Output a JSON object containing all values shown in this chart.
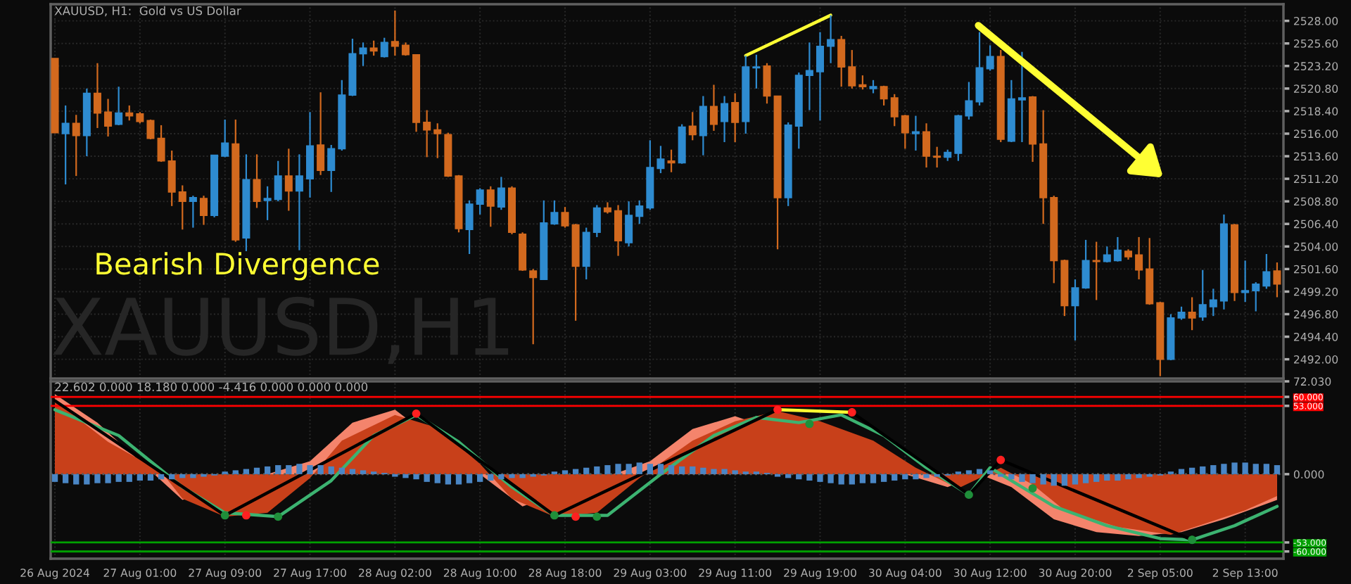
{
  "chart_data": [
    {
      "type": "candlestick",
      "title": "XAUUSD, H1:  Gold vs US Dollar",
      "categories": [
        null,
        null,
        null,
        null,
        null,
        null,
        null,
        null,
        null,
        null,
        null,
        null,
        null,
        null,
        null,
        null,
        null,
        null,
        null,
        null,
        null,
        null,
        null,
        null,
        null,
        null,
        null,
        null,
        null,
        null,
        null,
        null,
        null,
        null,
        null,
        null,
        null,
        null,
        null,
        null,
        null,
        null,
        null,
        null,
        null,
        null,
        null,
        null,
        null,
        null,
        null,
        null,
        null,
        null,
        null,
        null,
        null,
        null,
        null,
        null,
        null,
        null,
        null,
        null,
        null,
        null,
        null,
        null,
        null,
        null,
        null,
        null,
        null,
        null,
        null,
        null,
        null,
        null,
        null,
        null,
        null,
        null,
        null,
        null,
        null,
        null,
        null,
        null,
        null,
        null,
        null,
        null,
        null,
        null,
        null,
        null,
        null,
        null,
        null,
        null,
        null,
        null,
        null,
        null,
        null,
        null,
        null,
        null,
        null,
        null,
        null,
        null,
        null,
        null,
        null,
        null
      ],
      "ohlc": [
        [
          2524.0,
          2524.0,
          2516.1,
          2516.1
        ],
        [
          2516.0,
          2519.0,
          2510.6,
          2517.1
        ],
        [
          2517.1,
          2518.0,
          2511.5,
          2515.8
        ],
        [
          2515.8,
          2520.8,
          2513.6,
          2520.3
        ],
        [
          2520.3,
          2523.5,
          2516.6,
          2518.2
        ],
        [
          2518.3,
          2519.7,
          2515.7,
          2516.8
        ],
        [
          2517.0,
          2521.0,
          2516.9,
          2518.2
        ],
        [
          2518.2,
          2519.0,
          2517.4,
          2517.9
        ],
        [
          2518.1,
          2518.3,
          2517.1,
          2517.3
        ],
        [
          2517.4,
          2517.5,
          2515.4,
          2515.5
        ],
        [
          2515.5,
          2516.9,
          2513.0,
          2513.1
        ],
        [
          2513.1,
          2514.2,
          2508.3,
          2509.8
        ],
        [
          2509.8,
          2510.5,
          2505.8,
          2508.8
        ],
        [
          2508.8,
          2509.4,
          2506.0,
          2509.2
        ],
        [
          2509.1,
          2509.4,
          2506.3,
          2507.3
        ],
        [
          2507.3,
          2513.7,
          2507.1,
          2513.7
        ],
        [
          2513.6,
          2517.5,
          2513.5,
          2515.0
        ],
        [
          2514.9,
          2517.5,
          2504.5,
          2504.7
        ],
        [
          2504.9,
          2513.8,
          2503.5,
          2511.1
        ],
        [
          2511.1,
          2513.8,
          2508.1,
          2508.8
        ],
        [
          2508.9,
          2510.4,
          2506.8,
          2509.1
        ],
        [
          2509.0,
          2513.1,
          2508.8,
          2511.5
        ],
        [
          2511.5,
          2514.4,
          2507.8,
          2509.9
        ],
        [
          2509.9,
          2513.8,
          2503.6,
          2511.5
        ],
        [
          2511.2,
          2518.3,
          2509.2,
          2514.7
        ],
        [
          2514.8,
          2520.4,
          2511.6,
          2512.1
        ],
        [
          2512.1,
          2514.8,
          2509.8,
          2514.4
        ],
        [
          2514.4,
          2521.7,
          2514.2,
          2520.1
        ],
        [
          2520.1,
          2526.1,
          2520.0,
          2524.5
        ],
        [
          2524.5,
          2525.7,
          2523.2,
          2525.1
        ],
        [
          2525.1,
          2525.9,
          2524.3,
          2524.8
        ],
        [
          2524.2,
          2526.2,
          2524.1,
          2525.7
        ],
        [
          2525.8,
          2529.1,
          2524.3,
          2525.3
        ],
        [
          2525.4,
          2525.7,
          2524.3,
          2524.4
        ],
        [
          2524.4,
          2524.4,
          2516.2,
          2517.2
        ],
        [
          2517.2,
          2518.5,
          2513.5,
          2516.4
        ],
        [
          2516.4,
          2517.1,
          2513.4,
          2516.0
        ],
        [
          2515.9,
          2516.1,
          2511.4,
          2511.5
        ],
        [
          2511.5,
          2511.6,
          2505.5,
          2505.9
        ],
        [
          2505.8,
          2508.9,
          2503.2,
          2508.5
        ],
        [
          2508.5,
          2510.2,
          2507.4,
          2510.0
        ],
        [
          2510.0,
          2510.4,
          2506.1,
          2508.3
        ],
        [
          2508.2,
          2511.4,
          2507.9,
          2510.2
        ],
        [
          2510.2,
          2510.4,
          2505.3,
          2505.5
        ],
        [
          2505.3,
          2505.5,
          2501.4,
          2501.5
        ],
        [
          2501.4,
          2501.6,
          2493.6,
          2500.7
        ],
        [
          2500.5,
          2508.9,
          2500.5,
          2506.5
        ],
        [
          2506.4,
          2508.9,
          2506.3,
          2507.6
        ],
        [
          2507.6,
          2508.2,
          2506.0,
          2506.2
        ],
        [
          2506.3,
          2506.4,
          2496.1,
          2501.9
        ],
        [
          2501.9,
          2506.0,
          2500.5,
          2505.5
        ],
        [
          2505.5,
          2508.4,
          2505.0,
          2508.1
        ],
        [
          2508.1,
          2508.7,
          2507.5,
          2507.7
        ],
        [
          2507.8,
          2508.4,
          2503.0,
          2504.6
        ],
        [
          2504.4,
          2508.8,
          2504.0,
          2507.3
        ],
        [
          2507.2,
          2508.9,
          2506.4,
          2508.3
        ],
        [
          2508.1,
          2515.3,
          2507.9,
          2512.4
        ],
        [
          2512.3,
          2514.7,
          2511.8,
          2513.3
        ],
        [
          2513.1,
          2514.3,
          2511.9,
          2512.9
        ],
        [
          2512.9,
          2517.0,
          2512.8,
          2516.7
        ],
        [
          2516.8,
          2518.3,
          2515.3,
          2515.9
        ],
        [
          2515.8,
          2520.0,
          2513.7,
          2518.9
        ],
        [
          2518.9,
          2521.2,
          2516.3,
          2517.0
        ],
        [
          2517.3,
          2520.0,
          2515.1,
          2519.2
        ],
        [
          2519.3,
          2520.3,
          2515.1,
          2517.2
        ],
        [
          2517.3,
          2524.3,
          2516.0,
          2523.1
        ],
        [
          2523.0,
          2524.4,
          2520.8,
          2523.1
        ],
        [
          2523.2,
          2523.5,
          2519.2,
          2520.0
        ],
        [
          2520.0,
          2520.0,
          2503.7,
          2509.2
        ],
        [
          2509.2,
          2517.2,
          2508.3,
          2516.9
        ],
        [
          2516.8,
          2522.5,
          2514.4,
          2522.2
        ],
        [
          2522.2,
          2525.7,
          2518.5,
          2522.7
        ],
        [
          2522.6,
          2526.8,
          2517.4,
          2525.3
        ],
        [
          2525.3,
          2528.6,
          2523.5,
          2526.0
        ],
        [
          2526.0,
          2526.4,
          2521.0,
          2523.1
        ],
        [
          2523.1,
          2524.9,
          2520.8,
          2521.1
        ],
        [
          2521.2,
          2522.2,
          2520.7,
          2521.0
        ],
        [
          2520.8,
          2521.7,
          2520.3,
          2521.0
        ],
        [
          2521.0,
          2521.1,
          2519.0,
          2519.7
        ],
        [
          2519.8,
          2520.2,
          2516.8,
          2517.8
        ],
        [
          2517.9,
          2518.0,
          2514.4,
          2516.1
        ],
        [
          2516.0,
          2517.9,
          2514.2,
          2516.2
        ],
        [
          2516.2,
          2517.1,
          2512.4,
          2513.6
        ],
        [
          2513.6,
          2514.6,
          2512.4,
          2513.5
        ],
        [
          2513.5,
          2514.3,
          2513.1,
          2514.0
        ],
        [
          2513.9,
          2518.0,
          2513.1,
          2517.9
        ],
        [
          2517.9,
          2521.5,
          2517.5,
          2519.5
        ],
        [
          2519.4,
          2526.8,
          2519.0,
          2523.0
        ],
        [
          2522.9,
          2525.4,
          2522.7,
          2524.2
        ],
        [
          2524.2,
          2524.9,
          2515.1,
          2515.4
        ],
        [
          2515.2,
          2521.7,
          2515.1,
          2519.7
        ],
        [
          2519.6,
          2524.7,
          2515.1,
          2519.8
        ],
        [
          2519.9,
          2520.0,
          2513.0,
          2514.9
        ],
        [
          2514.9,
          2518.5,
          2506.4,
          2509.2
        ],
        [
          2509.2,
          2509.4,
          2500.1,
          2502.5
        ],
        [
          2502.5,
          2502.6,
          2496.6,
          2497.7
        ],
        [
          2497.7,
          2500.5,
          2494.0,
          2499.6
        ],
        [
          2499.6,
          2504.7,
          2499.5,
          2502.5
        ],
        [
          2502.5,
          2504.5,
          2498.3,
          2502.4
        ],
        [
          2502.4,
          2504.0,
          2502.3,
          2503.1
        ],
        [
          2502.5,
          2505.0,
          2502.4,
          2503.6
        ],
        [
          2503.5,
          2503.7,
          2502.6,
          2502.9
        ],
        [
          2503.1,
          2505.0,
          2500.5,
          2501.5
        ],
        [
          2501.6,
          2504.9,
          2497.8,
          2497.9
        ],
        [
          2498.0,
          2498.1,
          2490.2,
          2492.0
        ],
        [
          2492.0,
          2496.8,
          2491.9,
          2496.4
        ],
        [
          2496.4,
          2497.6,
          2496.2,
          2497.0
        ],
        [
          2497.0,
          2498.6,
          2495.1,
          2496.4
        ],
        [
          2496.5,
          2501.5,
          2496.1,
          2497.8
        ],
        [
          2497.6,
          2499.5,
          2496.6,
          2498.3
        ],
        [
          2498.2,
          2507.4,
          2497.3,
          2506.4
        ],
        [
          2506.3,
          2506.4,
          2498.2,
          2499.1
        ],
        [
          2499.1,
          2502.5,
          2498.1,
          2499.3
        ],
        [
          2499.3,
          2500.2,
          2497.1,
          2500.0
        ],
        [
          2499.8,
          2503.2,
          2499.5,
          2501.3
        ],
        [
          2501.4,
          2502.3,
          2498.6,
          2500.0
        ]
      ],
      "colors": [
        "#d2691e",
        "#2e8bd0",
        "#d2691e",
        "#2e8bd0",
        "#d2691e",
        "#d2691e",
        "#2e8bd0",
        "#d2691e",
        "#d2691e",
        "#d2691e",
        "#d2691e",
        "#d2691e",
        "#d2691e",
        "#2e8bd0",
        "#d2691e",
        "#2e8bd0",
        "#2e8bd0",
        "#d2691e",
        "#2e8bd0",
        "#d2691e",
        "#2e8bd0",
        "#2e8bd0",
        "#d2691e",
        "#2e8bd0",
        "#2e8bd0",
        "#d2691e",
        "#2e8bd0",
        "#2e8bd0",
        "#2e8bd0",
        "#2e8bd0",
        "#d2691e",
        "#2e8bd0",
        "#d2691e",
        "#d2691e",
        "#d2691e",
        "#d2691e",
        "#d2691e",
        "#d2691e",
        "#d2691e",
        "#2e8bd0",
        "#2e8bd0",
        "#d2691e",
        "#2e8bd0",
        "#d2691e",
        "#d2691e",
        "#d2691e",
        "#2e8bd0",
        "#2e8bd0",
        "#d2691e",
        "#d2691e",
        "#2e8bd0",
        "#2e8bd0",
        "#d2691e",
        "#d2691e",
        "#2e8bd0",
        "#2e8bd0",
        "#2e8bd0",
        "#2e8bd0",
        "#d2691e",
        "#2e8bd0",
        "#d2691e",
        "#2e8bd0",
        "#d2691e",
        "#2e8bd0",
        "#d2691e",
        "#2e8bd0",
        "#2e8bd0",
        "#d2691e",
        "#d2691e",
        "#2e8bd0",
        "#2e8bd0",
        "#2e8bd0",
        "#2e8bd0",
        "#2e8bd0",
        "#d2691e",
        "#d2691e",
        "#d2691e",
        "#2e8bd0",
        "#d2691e",
        "#d2691e",
        "#d2691e",
        "#2e8bd0",
        "#d2691e",
        "#d2691e",
        "#2e8bd0",
        "#2e8bd0",
        "#2e8bd0",
        "#2e8bd0",
        "#2e8bd0",
        "#d2691e",
        "#2e8bd0",
        "#2e8bd0",
        "#d2691e",
        "#d2691e",
        "#d2691e",
        "#d2691e",
        "#2e8bd0",
        "#2e8bd0",
        "#d2691e",
        "#2e8bd0",
        "#2e8bd0",
        "#d2691e",
        "#d2691e",
        "#d2691e",
        "#d2691e",
        "#2e8bd0",
        "#2e8bd0",
        "#d2691e",
        "#2e8bd0",
        "#2e8bd0",
        "#2e8bd0",
        "#d2691e",
        "#2e8bd0",
        "#2e8bd0",
        "#2e8bd0",
        "#d2691e"
      ],
      "series": [
        {
          "type": "line",
          "color": "#ffff33",
          "values": [
            null,
            null,
            null,
            null,
            null,
            null,
            null,
            null,
            null,
            null,
            null,
            null,
            null,
            null,
            null,
            null,
            null,
            null,
            null,
            null,
            null,
            null,
            null,
            null,
            null,
            null,
            null,
            null,
            null,
            null,
            null,
            null,
            null,
            null,
            null,
            null,
            null,
            null,
            null,
            null,
            null,
            null,
            null,
            null,
            null,
            null,
            null,
            null,
            null,
            null,
            null,
            null,
            null,
            null,
            null,
            null,
            null,
            null,
            null,
            null,
            null,
            null,
            null,
            null,
            null,
            2524.3,
            null,
            null,
            null,
            null,
            null,
            null,
            null,
            2528.6,
            null,
            null,
            null,
            null,
            null,
            null,
            null,
            null,
            null,
            null,
            null,
            null,
            null,
            null,
            null,
            null,
            null,
            null,
            null,
            null,
            null,
            null,
            null,
            null,
            null,
            null,
            null,
            null,
            null,
            null,
            null,
            null,
            null,
            null,
            null,
            null,
            null,
            null,
            null,
            null,
            null,
            null
          ]
        }
      ],
      "annotations": [
        "Bearish Divergence",
        "XAUUSD,H1"
      ],
      "ylim": [
        2489.95,
        2529.77
      ],
      "yticks": [
        {
          "value": 2492.0,
          "label": "2492.00"
        },
        {
          "value": 2494.4,
          "label": "2494.40"
        },
        {
          "value": 2496.8,
          "label": "2496.80"
        },
        {
          "value": 2499.2,
          "label": "2499.20"
        },
        {
          "value": 2501.6,
          "label": "2501.60"
        },
        {
          "value": 2504.0,
          "label": "2504.00"
        },
        {
          "value": 2506.4,
          "label": "2506.40"
        },
        {
          "value": 2508.8,
          "label": "2508.80"
        },
        {
          "value": 2511.2,
          "label": "2511.20"
        },
        {
          "value": 2513.6,
          "label": "2513.60"
        },
        {
          "value": 2516.0,
          "label": "2516.00"
        },
        {
          "value": 2518.4,
          "label": "2518.40"
        },
        {
          "value": 2520.8,
          "label": "2520.80"
        },
        {
          "value": 2523.2,
          "label": "2523.20"
        },
        {
          "value": 2525.6,
          "label": "2525.60"
        },
        {
          "value": 2528.0,
          "label": "2528.00"
        }
      ],
      "tick_labels": "y",
      "grid": true
    },
    {
      "type": "area",
      "title": "22.602 0.000 18.180 0.000 -4.416 0.000 0.000 0.000",
      "categories": [
        "26 Aug 2024",
        null,
        null,
        null,
        null,
        null,
        null,
        null,
        "27 Aug 01:00",
        null,
        null,
        null,
        null,
        null,
        null,
        null,
        "27 Aug 09:00",
        null,
        null,
        null,
        null,
        null,
        null,
        null,
        "27 Aug 17:00",
        null,
        null,
        null,
        null,
        null,
        null,
        null,
        "28 Aug 02:00",
        null,
        null,
        null,
        null,
        null,
        null,
        null,
        "28 Aug 10:00",
        null,
        null,
        null,
        null,
        null,
        null,
        null,
        "28 Aug 18:00",
        null,
        null,
        null,
        null,
        null,
        null,
        null,
        "29 Aug 03:00",
        null,
        null,
        null,
        null,
        null,
        null,
        null,
        "29 Aug 11:00",
        null,
        null,
        null,
        null,
        null,
        null,
        null,
        "29 Aug 19:00",
        null,
        null,
        null,
        null,
        null,
        null,
        null,
        "30 Aug 04:00",
        null,
        null,
        null,
        null,
        null,
        null,
        null,
        "30 Aug 12:00",
        null,
        null,
        null,
        null,
        null,
        null,
        null,
        "30 Aug 20:00",
        null,
        null,
        null,
        null,
        null,
        null,
        null,
        "2 Sep 05:00",
        null,
        null,
        null,
        null,
        null,
        null,
        null,
        "2 Sep 13:00",
        null,
        null,
        null
      ],
      "series": [
        {
          "type": "area",
          "color": "#f4846c",
          "values": [
            62,
            null,
            null,
            null,
            40,
            null,
            null,
            null,
            10,
            null,
            null,
            null,
            -20,
            null,
            null,
            null,
            null,
            null,
            null,
            null,
            null,
            null,
            null,
            null,
            10,
            null,
            null,
            null,
            40,
            null,
            null,
            null,
            50,
            null,
            null,
            null,
            null,
            null,
            null,
            null,
            0,
            null,
            null,
            null,
            -25,
            null,
            null,
            null,
            null,
            null,
            null,
            null,
            null,
            null,
            null,
            null,
            10,
            null,
            null,
            null,
            35,
            null,
            null,
            null,
            45,
            null,
            null,
            null,
            null,
            null,
            null,
            null,
            null,
            null,
            null,
            null,
            null,
            null,
            null,
            null,
            0,
            null,
            null,
            null,
            -10,
            null,
            null,
            0,
            null,
            null,
            -10,
            null,
            null,
            null,
            -35,
            null,
            null,
            null,
            -45,
            null,
            null,
            null,
            -48,
            null,
            null,
            null,
            -45,
            null,
            null,
            null,
            -35,
            null,
            null,
            null,
            null,
            -20
          ]
        },
        {
          "type": "area",
          "color": "#c8401a",
          "values": [
            57,
            null,
            null,
            null,
            null,
            25,
            null,
            null,
            null,
            null,
            2,
            null,
            -19,
            null,
            null,
            null,
            -33,
            null,
            null,
            null,
            -30,
            null,
            null,
            null,
            -3,
            null,
            null,
            26,
            null,
            null,
            null,
            null,
            46,
            null,
            null,
            null,
            36,
            null,
            null,
            null,
            8,
            null,
            null,
            -19,
            null,
            null,
            null,
            -33,
            null,
            null,
            null,
            -30,
            null,
            null,
            null,
            -3,
            null,
            null,
            null,
            null,
            26,
            null,
            null,
            null,
            41,
            null,
            null,
            null,
            49,
            null,
            null,
            null,
            41,
            null,
            null,
            null,
            null,
            26,
            null,
            null,
            null,
            5,
            null,
            null,
            null,
            -11,
            null,
            -3,
            null,
            5,
            null,
            null,
            -8,
            null,
            null,
            -28,
            null,
            null,
            null,
            null,
            -41,
            null,
            null,
            null,
            null,
            -47,
            null,
            null,
            -39,
            null,
            null,
            null,
            -28,
            null,
            null,
            -17
          ]
        },
        {
          "type": "line",
          "color": "#3cb371",
          "values": [
            50,
            null,
            null,
            null,
            null,
            null,
            30,
            null,
            null,
            null,
            null,
            null,
            -10,
            null,
            null,
            null,
            -30,
            null,
            null,
            null,
            null,
            -33,
            null,
            null,
            null,
            null,
            -5,
            null,
            null,
            null,
            30,
            null,
            null,
            null,
            46,
            null,
            null,
            null,
            25,
            null,
            null,
            null,
            null,
            -10,
            null,
            null,
            null,
            -32,
            null,
            null,
            null,
            null,
            -32,
            null,
            null,
            null,
            null,
            0,
            null,
            null,
            null,
            null,
            30,
            null,
            null,
            null,
            44,
            null,
            null,
            null,
            40,
            null,
            null,
            null,
            46,
            null,
            null,
            null,
            30,
            null,
            null,
            null,
            5,
            null,
            null,
            null,
            -16,
            null,
            5,
            null,
            -5,
            null,
            null,
            null,
            -25,
            null,
            null,
            null,
            null,
            -40,
            null,
            null,
            null,
            null,
            -50,
            null,
            null,
            -51,
            null,
            null,
            null,
            -40,
            null,
            null,
            null,
            -25
          ]
        },
        {
          "type": "bar",
          "color": "#4a86c5",
          "values": [
            -6,
            -7,
            -8,
            -8,
            -7,
            -7,
            -6,
            -6,
            -5,
            -5,
            -4,
            -4,
            -3,
            -3,
            -2,
            -1,
            2,
            3,
            4,
            5,
            6,
            7,
            7,
            8,
            7,
            7,
            6,
            5,
            4,
            3,
            2,
            1,
            -2,
            -3,
            -4,
            -6,
            -7,
            -8,
            -8,
            -7,
            -6,
            -5,
            -4,
            -3,
            -3,
            -2,
            -1,
            2,
            3,
            4,
            5,
            6,
            7,
            8,
            8,
            9,
            8,
            8,
            7,
            6,
            6,
            5,
            4,
            4,
            3,
            2,
            2,
            1,
            -2,
            -3,
            -4,
            -5,
            -6,
            -7,
            -8,
            -8,
            -7,
            -7,
            -6,
            -5,
            -4,
            -4,
            -3,
            -2,
            -1,
            2,
            3,
            4,
            3,
            -2,
            -4,
            -6,
            -7,
            -8,
            -9,
            -9,
            -8,
            -7,
            -6,
            -5,
            -5,
            -4,
            -3,
            -2,
            -1,
            2,
            4,
            5,
            6,
            7,
            8,
            9,
            9,
            8,
            8,
            7
          ]
        },
        {
          "type": "line",
          "color": "#000000",
          "values": [
            57,
            null,
            null,
            null,
            null,
            null,
            null,
            null,
            null,
            null,
            null,
            null,
            null,
            null,
            null,
            null,
            -32,
            null,
            null,
            null,
            null,
            null,
            null,
            null,
            null,
            null,
            null,
            null,
            null,
            null,
            null,
            null,
            null,
            null,
            47,
            null,
            null,
            null,
            null,
            null,
            null,
            null,
            null,
            null,
            null,
            null,
            null,
            -32,
            null,
            null,
            null,
            null,
            null,
            null,
            null,
            null,
            null,
            null,
            null,
            null,
            null,
            null,
            null,
            null,
            null,
            null,
            null,
            null,
            50,
            null,
            null,
            null,
            null,
            null,
            null,
            48,
            null,
            null,
            null,
            null,
            null,
            null,
            null,
            null,
            null,
            null,
            -16,
            null,
            null,
            11,
            null,
            null,
            null,
            null,
            null,
            null,
            null,
            null,
            null,
            null,
            null,
            null,
            null,
            null,
            null,
            null,
            null,
            -51,
            null,
            null,
            null,
            null,
            null,
            null,
            null,
            null
          ]
        },
        {
          "type": "line",
          "color": "#ffff33",
          "values": [
            null,
            null,
            null,
            null,
            null,
            null,
            null,
            null,
            null,
            null,
            null,
            null,
            null,
            null,
            null,
            null,
            null,
            null,
            null,
            null,
            null,
            null,
            null,
            null,
            null,
            null,
            null,
            null,
            null,
            null,
            null,
            null,
            null,
            null,
            null,
            null,
            null,
            null,
            null,
            null,
            null,
            null,
            null,
            null,
            null,
            null,
            null,
            null,
            null,
            null,
            null,
            null,
            null,
            null,
            null,
            null,
            null,
            null,
            null,
            null,
            null,
            null,
            null,
            null,
            null,
            null,
            null,
            null,
            50,
            null,
            null,
            null,
            null,
            null,
            null,
            48,
            null,
            null,
            null,
            null,
            null,
            null,
            null,
            null,
            null,
            null,
            null,
            null,
            null,
            null,
            null,
            null,
            null,
            null,
            null,
            null,
            null,
            null,
            null,
            null,
            null,
            null,
            null,
            null,
            null,
            null,
            null,
            null,
            null,
            null,
            null,
            null,
            null,
            null,
            null,
            null
          ]
        },
        {
          "type": "scatter",
          "color": "#ff2020",
          "values": [
            null,
            null,
            null,
            null,
            null,
            null,
            null,
            null,
            null,
            null,
            null,
            null,
            null,
            null,
            null,
            null,
            null,
            null,
            -32,
            null,
            null,
            null,
            null,
            null,
            null,
            null,
            null,
            null,
            null,
            null,
            null,
            null,
            null,
            null,
            47,
            null,
            null,
            null,
            null,
            null,
            null,
            null,
            null,
            null,
            null,
            null,
            null,
            null,
            null,
            -33,
            null,
            null,
            null,
            null,
            null,
            null,
            null,
            null,
            null,
            null,
            null,
            null,
            null,
            null,
            null,
            null,
            null,
            null,
            50,
            null,
            null,
            null,
            null,
            null,
            null,
            48,
            null,
            null,
            null,
            null,
            null,
            null,
            null,
            null,
            null,
            null,
            null,
            null,
            null,
            11,
            null,
            null,
            null,
            null,
            null,
            null,
            null,
            null,
            null,
            null,
            null,
            null,
            null,
            null,
            null,
            null,
            null,
            null,
            null,
            null,
            null,
            null,
            null,
            null,
            null,
            null
          ]
        },
        {
          "type": "scatter",
          "color": "#1f8f3a",
          "values": [
            null,
            null,
            null,
            null,
            null,
            null,
            null,
            null,
            null,
            null,
            null,
            null,
            null,
            null,
            null,
            null,
            -32,
            null,
            null,
            null,
            null,
            -33,
            null,
            null,
            null,
            null,
            null,
            null,
            null,
            null,
            null,
            null,
            null,
            null,
            null,
            null,
            null,
            null,
            null,
            null,
            null,
            null,
            null,
            null,
            null,
            null,
            null,
            -32,
            null,
            null,
            null,
            -33,
            null,
            null,
            null,
            null,
            null,
            null,
            null,
            null,
            null,
            null,
            null,
            null,
            null,
            null,
            null,
            null,
            null,
            null,
            null,
            39,
            null,
            null,
            null,
            null,
            null,
            null,
            null,
            null,
            null,
            null,
            null,
            null,
            null,
            null,
            -16,
            null,
            null,
            null,
            null,
            null,
            -11,
            null,
            null,
            null,
            null,
            null,
            null,
            null,
            null,
            null,
            null,
            null,
            null,
            null,
            null,
            -51,
            null,
            null,
            null,
            null,
            null,
            null,
            null,
            null
          ]
        }
      ],
      "ref_lines": [
        {
          "axis": "y",
          "value": 60,
          "color": "#ff0000"
        },
        {
          "axis": "y",
          "value": 53,
          "color": "#ff0000"
        },
        {
          "axis": "y",
          "value": 0,
          "color": "#5a5a5a",
          "line_style": "dotted"
        },
        {
          "axis": "y",
          "value": -53,
          "color": "#00a000"
        },
        {
          "axis": "y",
          "value": -60,
          "color": "#00a000"
        }
      ],
      "ylim": [
        -65.6,
        72.03
      ],
      "yticks": [
        {
          "value": -60,
          "label": "-60.000"
        },
        {
          "value": -53,
          "label": "-53.000"
        },
        {
          "value": 0,
          "label": "0.000"
        },
        {
          "value": 53,
          "label": "53.000"
        },
        {
          "value": 60,
          "label": "60.000"
        },
        {
          "value": 72.03,
          "label": "72.030"
        }
      ],
      "grid": true
    }
  ]
}
